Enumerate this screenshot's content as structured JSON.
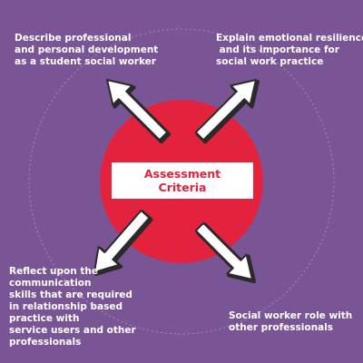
{
  "colors": {
    "background": "#7a5595",
    "circle": "#e3223e",
    "arrow_fill": "#ffffff",
    "arrow_stroke": "#2a2a2a",
    "orbit": "#a58ab8",
    "text": "#ffffff",
    "center_text": "#e3223e"
  },
  "center": {
    "line1": "Assessment",
    "line2": "Criteria"
  },
  "labels": {
    "top_left": [
      "Describe professional",
      "and personal development",
      "as a student social worker"
    ],
    "top_right": [
      "Explain emotional resilience",
      " and its importance for",
      "social work practice"
    ],
    "bottom_left": [
      "Reflect upon the",
      "communication",
      "skills that are required",
      "in relationship based",
      "practice with",
      "service users and other",
      "professionals"
    ],
    "bottom_right": [
      "Social worker role with",
      "other professionals"
    ]
  },
  "icons": {
    "arrow_top_left": "arrow-up-left-icon",
    "arrow_top_right": "arrow-up-right-icon",
    "arrow_bottom_left": "arrow-down-left-icon",
    "arrow_bottom_right": "arrow-down-right-icon"
  }
}
